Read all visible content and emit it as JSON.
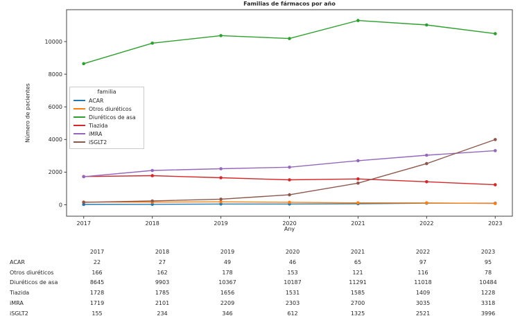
{
  "chart": {
    "title": "Familias de fármacos por año",
    "xlabel": "Any",
    "ylabel": "Número de pacientes",
    "legend_title": "familia"
  },
  "chart_data": {
    "type": "line",
    "title": "Familias de fármacos por año",
    "xlabel": "Any",
    "ylabel": "Número de pacientes",
    "x": [
      2017,
      2018,
      2019,
      2020,
      2021,
      2022,
      2023
    ],
    "series": [
      {
        "name": "ACAR",
        "color": "#1f77b4",
        "values": [
          22,
          27,
          49,
          46,
          65,
          97,
          95
        ]
      },
      {
        "name": "Otros diuréticos",
        "color": "#ff7f0e",
        "values": [
          166,
          162,
          178,
          153,
          121,
          116,
          78
        ]
      },
      {
        "name": "Diuréticos de asa",
        "color": "#2ca02c",
        "values": [
          8645,
          9903,
          10367,
          10187,
          11291,
          11018,
          10484
        ]
      },
      {
        "name": "Tiazida",
        "color": "#d62728",
        "values": [
          1728,
          1785,
          1656,
          1531,
          1585,
          1409,
          1228
        ]
      },
      {
        "name": "iMRA",
        "color": "#9467bd",
        "values": [
          1719,
          2101,
          2209,
          2303,
          2700,
          3035,
          3318
        ]
      },
      {
        "name": "iSGLT2",
        "color": "#8c564b",
        "values": [
          155,
          234,
          346,
          612,
          1325,
          2521,
          3996
        ]
      }
    ],
    "ylim": [
      -700,
      11953
    ],
    "xlim": [
      -0.25,
      6.25
    ],
    "yticks": [
      0,
      2000,
      4000,
      6000,
      8000,
      10000
    ],
    "grid": false,
    "legend_title": "familia",
    "legend_position": "center-left",
    "marker": "o",
    "axis_color": "#404040",
    "tick_label_color": "#262626"
  },
  "table": {
    "columns": [
      "",
      "2017",
      "2018",
      "2019",
      "2020",
      "2021",
      "2022",
      "2023"
    ],
    "rows": [
      {
        "label": "ACAR",
        "values": [
          "22",
          "27",
          "49",
          "46",
          "65",
          "97",
          "95"
        ]
      },
      {
        "label": "Otros diuréticos",
        "values": [
          "166",
          "162",
          "178",
          "153",
          "121",
          "116",
          "78"
        ]
      },
      {
        "label": "Diuréticos de asa",
        "values": [
          "8645",
          "9903",
          "10367",
          "10187",
          "11291",
          "11018",
          "10484"
        ]
      },
      {
        "label": "Tiazida",
        "values": [
          "1728",
          "1785",
          "1656",
          "1531",
          "1585",
          "1409",
          "1228"
        ]
      },
      {
        "label": "iMRA",
        "values": [
          "1719",
          "2101",
          "2209",
          "2303",
          "2700",
          "3035",
          "3318"
        ]
      },
      {
        "label": "iSGLT2",
        "values": [
          "155",
          "234",
          "346",
          "612",
          "1325",
          "2521",
          "3996"
        ]
      }
    ]
  }
}
